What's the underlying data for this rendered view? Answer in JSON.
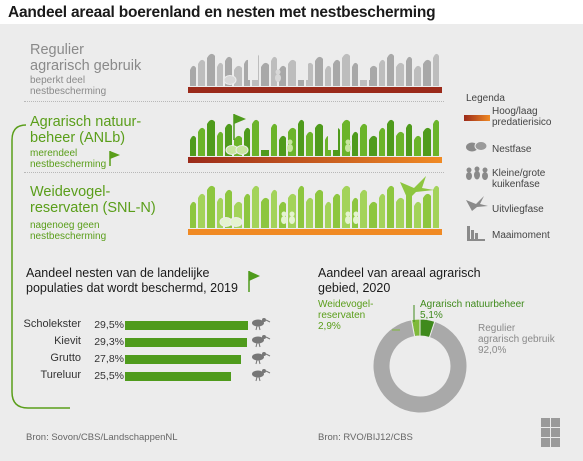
{
  "title": "Aandeel areaal boerenland en nesten met nestbescherming",
  "rows": [
    {
      "title": "Regulier\nagrarisch gebruik",
      "subtitle": "beperkt deel\nnestbescherming"
    },
    {
      "title": "Agrarisch natuur-\nbeheer (ANLb)",
      "subtitle": "merendeel\nnestbescherming"
    },
    {
      "title": "Weidevogel-\nreservaten (SNL-N)",
      "subtitle": "nagenoeg geen\nnestbescherming"
    }
  ],
  "legend": {
    "title": "Legenda",
    "items": [
      {
        "icon": "risk-gradient-icon",
        "label": "Hoog/laag\npredatierisico"
      },
      {
        "icon": "nest-icon",
        "label": "Nestfase"
      },
      {
        "icon": "chick-icon",
        "label": "Kleine/grote\nkuikenfase"
      },
      {
        "icon": "flying-bird-icon",
        "label": "Uitvliegfase"
      },
      {
        "icon": "mowing-icon",
        "label": "Maaimoment"
      }
    ]
  },
  "colors": {
    "green": "#4f9b1c",
    "light_green": "#8dc63f",
    "grey": "#a8a8a8",
    "dark_red": "#9b2a1a",
    "orange": "#f08a24",
    "pie_grey": "#a9a9a9",
    "pie_light_green": "#7fb93a",
    "pie_dark_green": "#3f8a1c"
  },
  "chart_data": [
    {
      "type": "bar",
      "title": "Aandeel nesten van de landelijke\npopulaties dat wordt beschermd, 2019",
      "categories": [
        "Scholekster",
        "Kievit",
        "Grutto",
        "Tureluur"
      ],
      "values": [
        29.5,
        29.3,
        27.8,
        25.5
      ],
      "value_labels": [
        "29,5%",
        "29,3%",
        "27,8%",
        "25,5%"
      ],
      "source": "Bron: Sovon/CBS/LandschappenNL"
    },
    {
      "type": "pie",
      "title": "Aandeel van areaal agrarisch\ngebied, 2020",
      "slices": [
        {
          "label": "Regulier\nagrarisch gebruik",
          "value": 92.0,
          "value_label": "92,0%",
          "color": "#a9a9a9"
        },
        {
          "label": "Weidevogel-\nreservaten",
          "value": 2.9,
          "value_label": "2,9%",
          "color": "#7fb93a"
        },
        {
          "label": "Agrarisch natuurbeheer",
          "value": 5.1,
          "value_label": "5,1%",
          "color": "#3f8a1c"
        }
      ],
      "source": "Bron: RVO/BIJ12/CBS"
    }
  ],
  "logo_text": "cbs"
}
